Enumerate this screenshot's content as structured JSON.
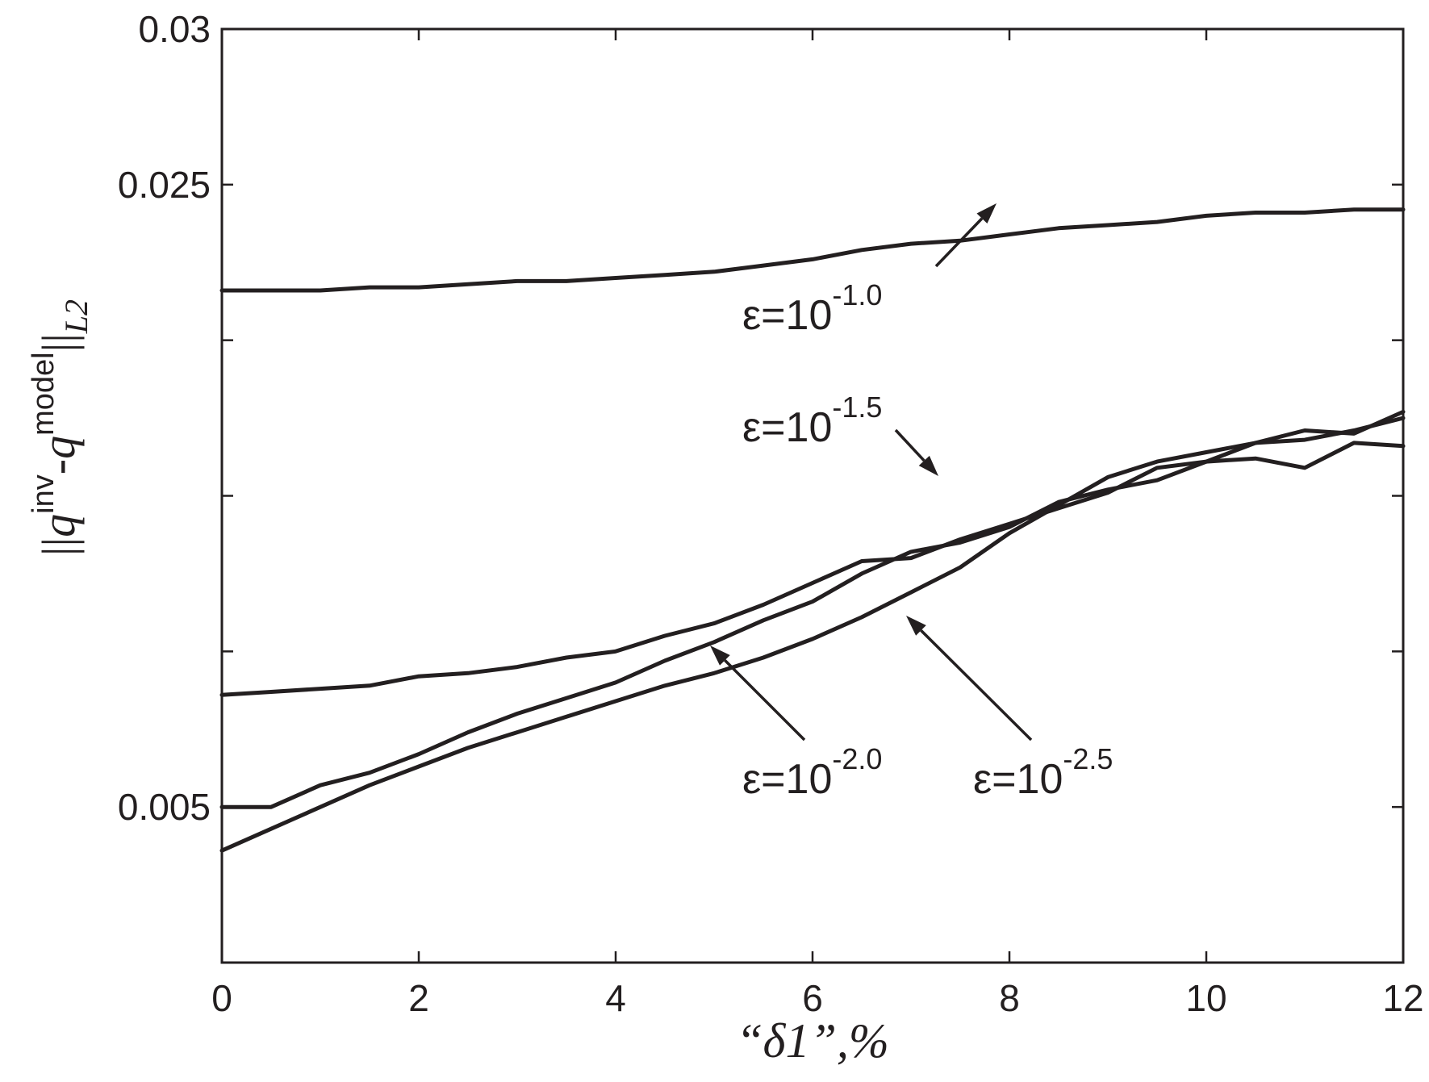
{
  "chart_data": {
    "type": "line",
    "title": "",
    "xlabel": "“δ1”,%",
    "ylabel_parts": {
      "pre": "||",
      "q1": "q",
      "sup1": "inv",
      "dash": "-",
      "q2": "q",
      "sup2": "model",
      "post": "||",
      "sub": "L2"
    },
    "xlim": [
      0,
      12
    ],
    "ylim": [
      0,
      0.03
    ],
    "xticks": [
      0,
      2,
      4,
      6,
      8,
      10,
      12
    ],
    "xtick_labels": [
      "0",
      "2",
      "4",
      "6",
      "8",
      "10",
      "12"
    ],
    "yticks": [
      0,
      0.005,
      0.01,
      0.015,
      0.02,
      0.025,
      0.03
    ],
    "ytick_labels": [
      "",
      "0.005",
      "",
      "",
      "",
      "0.025",
      "0.03"
    ],
    "grid": false,
    "series": [
      {
        "name": "ε=10^-1.0",
        "x": [
          0,
          0.5,
          1,
          1.5,
          2,
          2.5,
          3,
          3.5,
          4,
          4.5,
          5,
          5.5,
          6,
          6.5,
          7,
          7.5,
          8,
          8.5,
          9,
          9.5,
          10,
          10.5,
          11,
          11.5,
          12
        ],
        "values": [
          0.0216,
          0.0216,
          0.0216,
          0.0217,
          0.0217,
          0.0218,
          0.0219,
          0.0219,
          0.022,
          0.0221,
          0.0222,
          0.0224,
          0.0226,
          0.0229,
          0.0231,
          0.0232,
          0.0234,
          0.0236,
          0.0237,
          0.0238,
          0.024,
          0.0241,
          0.0241,
          0.0242,
          0.0242
        ]
      },
      {
        "name": "ε=10^-1.5",
        "x": [
          0,
          0.5,
          1,
          1.5,
          2,
          2.5,
          3,
          3.5,
          4,
          4.5,
          5,
          5.5,
          6,
          6.5,
          7,
          7.5,
          8,
          8.5,
          9,
          9.5,
          10,
          10.5,
          11,
          11.5,
          12
        ],
        "values": [
          0.0086,
          0.0087,
          0.0088,
          0.0089,
          0.0092,
          0.0093,
          0.0095,
          0.0098,
          0.01,
          0.0105,
          0.0109,
          0.0115,
          0.0122,
          0.0129,
          0.013,
          0.0136,
          0.0141,
          0.0146,
          0.0151,
          0.0159,
          0.0161,
          0.0162,
          0.0159,
          0.0167,
          0.0166
        ]
      },
      {
        "name": "ε=10^-2.0",
        "x": [
          0,
          0.5,
          1,
          1.5,
          2,
          2.5,
          3,
          3.5,
          4,
          4.5,
          5,
          5.5,
          6,
          6.5,
          7,
          7.5,
          8,
          8.5,
          9,
          9.5,
          10,
          10.5,
          11,
          11.5,
          12
        ],
        "values": [
          0.005,
          0.005,
          0.0057,
          0.0061,
          0.0067,
          0.0074,
          0.008,
          0.0085,
          0.009,
          0.0097,
          0.0103,
          0.011,
          0.0116,
          0.0125,
          0.0132,
          0.0135,
          0.014,
          0.0148,
          0.0152,
          0.0155,
          0.0161,
          0.0167,
          0.0168,
          0.0171,
          0.0175
        ]
      },
      {
        "name": "ε=10^-2.5",
        "x": [
          0,
          0.5,
          1,
          1.5,
          2,
          2.5,
          3,
          3.5,
          4,
          4.5,
          5,
          5.5,
          6,
          6.5,
          7,
          7.5,
          8,
          8.5,
          9,
          9.5,
          10,
          10.5,
          11,
          11.5,
          12
        ],
        "values": [
          0.0036,
          0.0043,
          0.005,
          0.0057,
          0.0063,
          0.0069,
          0.0074,
          0.0079,
          0.0084,
          0.0089,
          0.0093,
          0.0098,
          0.0104,
          0.0111,
          0.0119,
          0.0127,
          0.0138,
          0.0147,
          0.0156,
          0.0161,
          0.0164,
          0.0167,
          0.0171,
          0.017,
          0.0177
        ]
      }
    ],
    "annotations": [
      {
        "base": "ε=10",
        "exp": "-1.0",
        "series": 0
      },
      {
        "base": "ε=10",
        "exp": "-1.5",
        "series": 1
      },
      {
        "base": "ε=10",
        "exp": "-2.0",
        "series": 2
      },
      {
        "base": "ε=10",
        "exp": "-2.5",
        "series": 3
      }
    ]
  }
}
